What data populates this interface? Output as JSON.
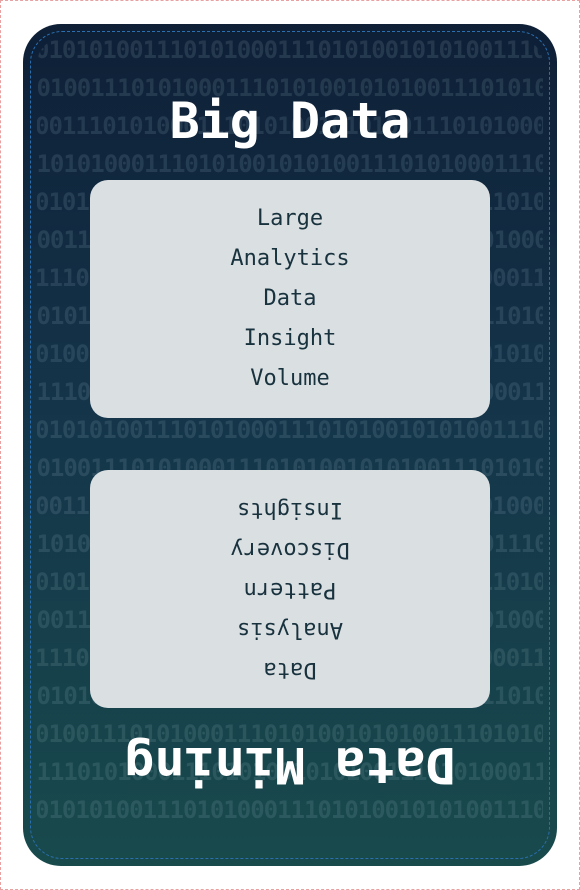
{
  "card": {
    "top_title": "Big Data",
    "bottom_title": "Data Mining",
    "top_words": [
      "Large",
      "Analytics",
      "Data",
      "Insight",
      "Volume"
    ],
    "bottom_words": [
      "Data",
      "Analysis",
      "Pattern",
      "Discovery",
      "Insights"
    ],
    "binary_pattern": "0101010011101010001110101001010100111010100011101010010101001110101000111010100101"
  },
  "colors": {
    "card_top": "#0e1f36",
    "card_bottom": "#184a4c",
    "panel_bg": "#dadfe2",
    "word_text": "#18323e",
    "title_text": "#ffffff"
  }
}
